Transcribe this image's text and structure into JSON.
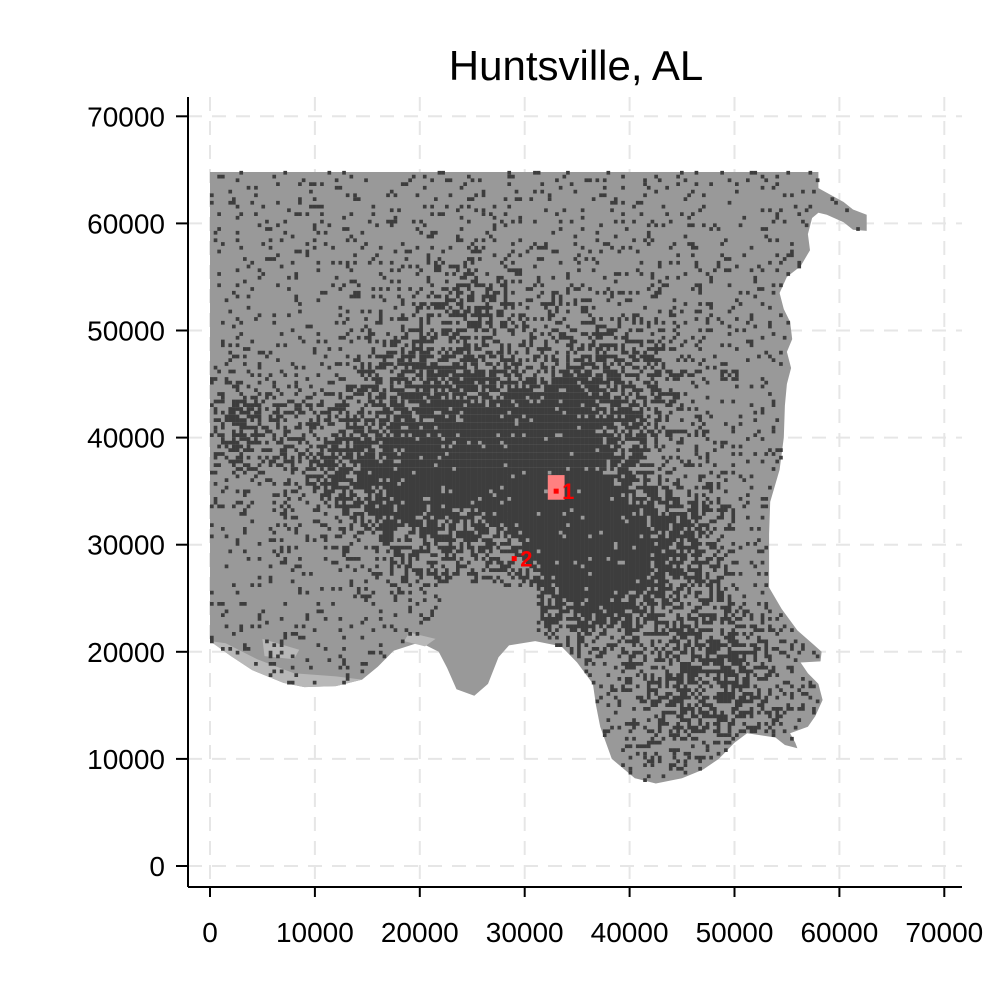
{
  "title": "Huntsville, AL",
  "chart_data": {
    "type": "scatter",
    "title": "Huntsville, AL",
    "xlabel": "",
    "ylabel": "",
    "xlim": [
      -2000,
      72000
    ],
    "ylim": [
      -2000,
      72000
    ],
    "x_ticks": [
      0,
      10000,
      20000,
      30000,
      40000,
      50000,
      60000,
      70000
    ],
    "y_ticks": [
      0,
      10000,
      20000,
      30000,
      40000,
      50000,
      60000,
      70000
    ],
    "x_tick_labels": [
      "0",
      "10000",
      "20000",
      "30000",
      "40000",
      "50000",
      "60000",
      "70000"
    ],
    "y_tick_labels": [
      "0",
      "10000",
      "20000",
      "30000",
      "40000",
      "50000",
      "60000",
      "70000"
    ],
    "grid": true,
    "colors": {
      "region": "#999999",
      "region_light": "#b8b8b8",
      "developed": "#3d3d3d",
      "marker": "#ff0000",
      "marker_area": "#ff8080",
      "grid": "#e6e6e6"
    },
    "markers": [
      {
        "label": "1",
        "x": 33000,
        "y": 35000
      },
      {
        "label": "2",
        "x": 29000,
        "y": 28700
      }
    ]
  }
}
